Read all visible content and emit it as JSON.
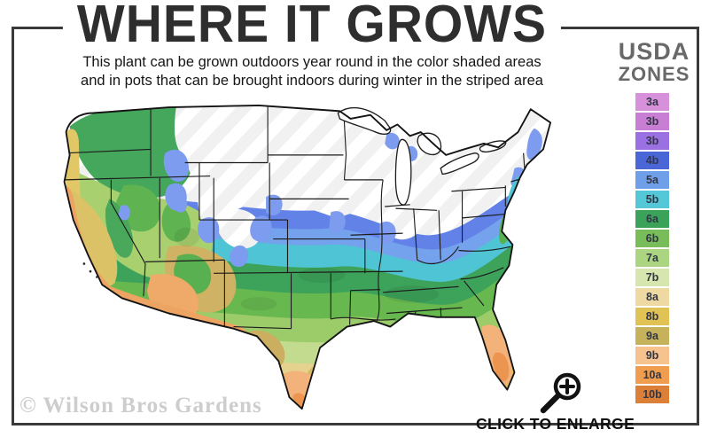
{
  "header": {
    "title": "WHERE IT GROWS",
    "subtitle_line1": "This plant can be grown outdoors year round in the color shaded areas",
    "subtitle_line2": "and in pots that can be brought indoors during winter in the striped area"
  },
  "legend": {
    "title_line1": "USDA",
    "title_line2": "ZONES",
    "zones": [
      {
        "label": "3a",
        "color": "#d791da"
      },
      {
        "label": "3b",
        "color": "#c87ed3"
      },
      {
        "label": "3b",
        "color": "#9b70e2"
      },
      {
        "label": "4b",
        "color": "#4b66d6"
      },
      {
        "label": "5a",
        "color": "#6f9fe9"
      },
      {
        "label": "5b",
        "color": "#55c8d8"
      },
      {
        "label": "6a",
        "color": "#3ba25a"
      },
      {
        "label": "6b",
        "color": "#78bd59"
      },
      {
        "label": "7a",
        "color": "#abd580"
      },
      {
        "label": "7b",
        "color": "#d6e6ae"
      },
      {
        "label": "8a",
        "color": "#eed9a2"
      },
      {
        "label": "8b",
        "color": "#e1c254"
      },
      {
        "label": "9a",
        "color": "#c6b25b"
      },
      {
        "label": "9b",
        "color": "#f6c28e"
      },
      {
        "label": "10a",
        "color": "#f09e4e"
      },
      {
        "label": "10b",
        "color": "#dc8038"
      }
    ]
  },
  "map": {
    "description": "USDA hardiness zone shaded map of the continental United States",
    "palette": {
      "striped_area": "#f1f1f1",
      "cold_blue": "#6282e8",
      "cyan": "#4fc4d4",
      "green": "#3da35a",
      "light_green": "#9ccb6a",
      "gold": "#ddc05e",
      "orange": "#ec9550"
    }
  },
  "footer": {
    "watermark": "© Wilson Bros Gardens",
    "enlarge_label": "CLICK TO ENLARGE",
    "enlarge_icon": "magnifier-plus-icon"
  }
}
